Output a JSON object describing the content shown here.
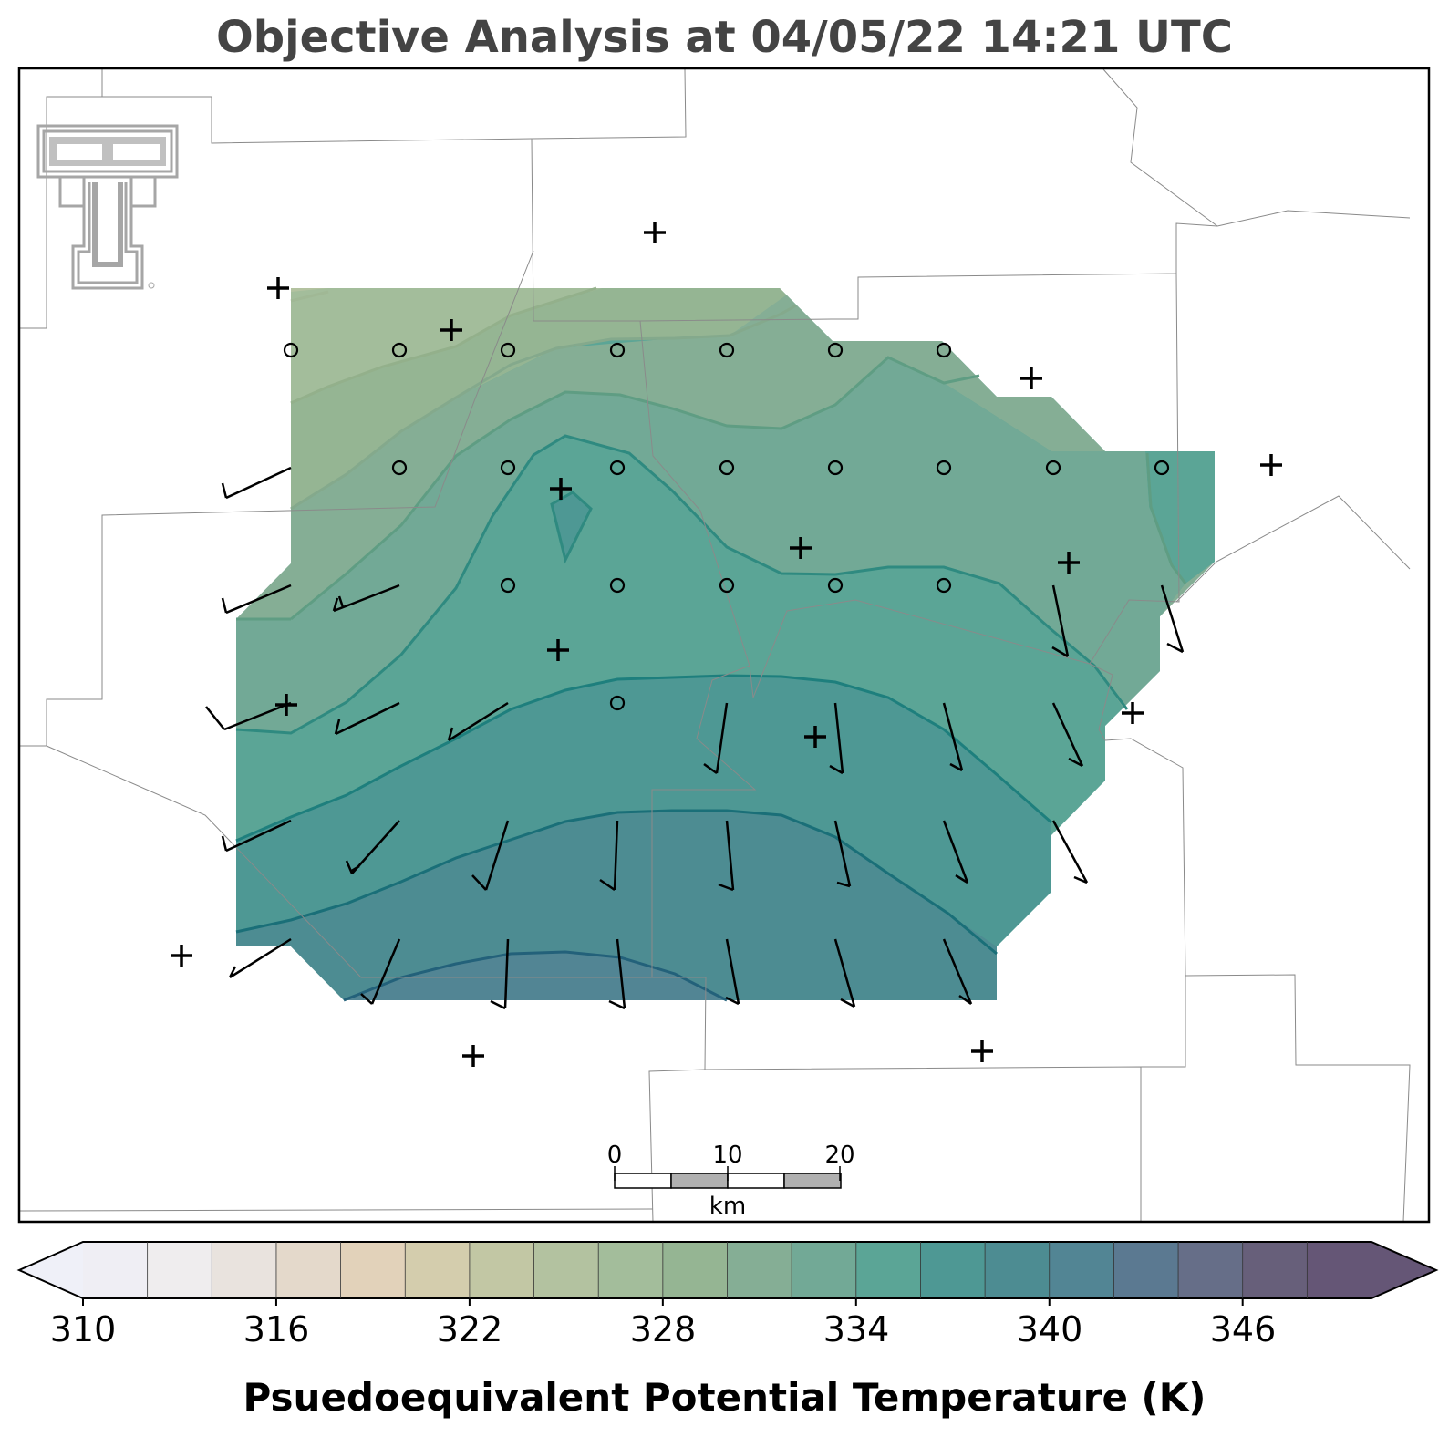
{
  "title": "Objective Analysis at 04/05/22 14:21 UTC",
  "colorbar": {
    "label": "Psuedoequivalent Potential Temperature (K)",
    "ticks": [
      "310",
      "316",
      "322",
      "328",
      "334",
      "340",
      "346"
    ],
    "min": 310,
    "max": 350,
    "step": 2,
    "extend": "both",
    "colors": [
      "#efeef4",
      "#efedee",
      "#e9e3de",
      "#e4d9cb",
      "#e2d2ba",
      "#d4cdad",
      "#c2c7a4",
      "#b3c2a0",
      "#a3bd9b",
      "#95b593",
      "#85ae95",
      "#72a996",
      "#5ba596",
      "#4e9894",
      "#4d8c92",
      "#528594",
      "#5b7991",
      "#666e88",
      "#675f7a",
      "#655676"
    ],
    "extend_low_color": "#eff0f8",
    "extend_high_color": "#655676"
  },
  "scale_bar": {
    "unit": "km",
    "labels": [
      "0",
      "10",
      "20"
    ]
  },
  "logo": {
    "name": "Texas Tech Double T",
    "color": "#a6a6a6"
  },
  "map": {
    "contour_values_K": [
      322,
      324,
      326,
      328,
      330,
      332,
      334,
      336,
      338
    ],
    "observation_marker_types": [
      "circle (calm wind)",
      "plus (station)",
      "wind barb"
    ]
  }
}
